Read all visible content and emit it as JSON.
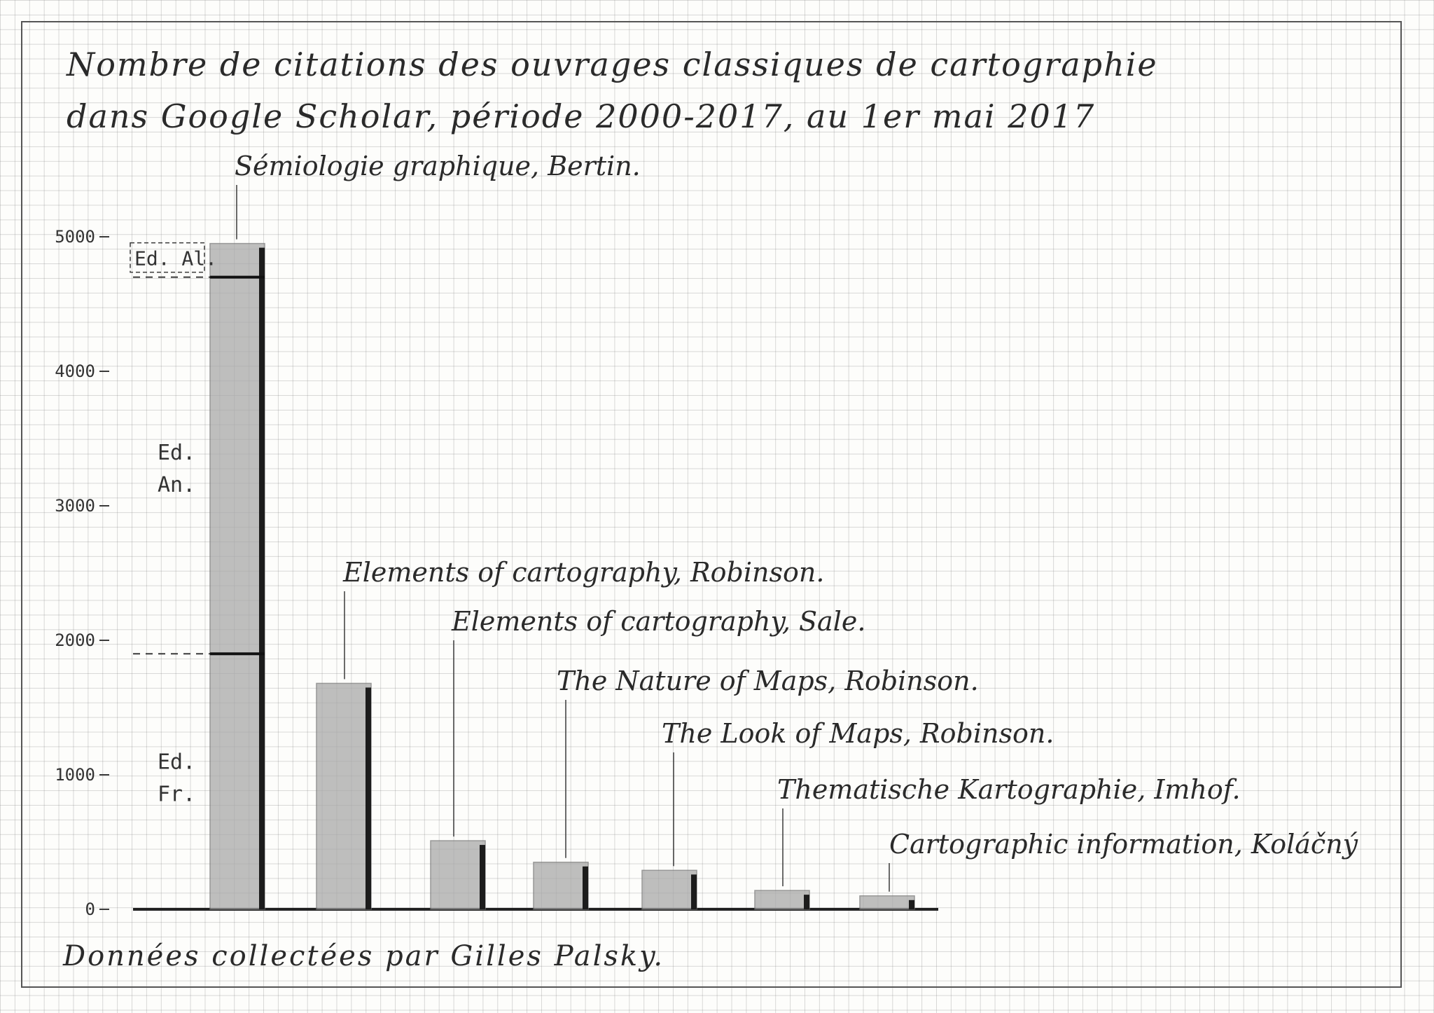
{
  "title_lines": [
    "Nombre de citations des ouvrages classiques de cartographie",
    "dans Google Scholar, période 2000-2017, au 1er mai 2017"
  ],
  "source": "Données collectées par Gilles Palsky.",
  "colors": {
    "pencil": "#3a3a3a",
    "shade": "#a9a9a9",
    "grid": "#b8b8b8"
  },
  "chart_data": {
    "type": "bar",
    "title": "Nombre de citations des ouvrages classiques de cartographie dans Google Scholar, période 2000-2017, au 1er mai 2017",
    "xlabel": "",
    "ylabel": "",
    "ylim": [
      0,
      5000
    ],
    "yticks": [
      0,
      1000,
      2000,
      3000,
      4000,
      5000
    ],
    "ytick_labels": [
      "0",
      "1000",
      "2000",
      "3000",
      "4000",
      "5000"
    ],
    "grid": true,
    "categories": [
      "Sémiologie graphique, Bertin.",
      "Elements of cartography, Robinson.",
      "Elements of cartography, Sale.",
      "The Nature of Maps, Robinson.",
      "The Look of Maps, Robinson.",
      "Thematische Kartographie, Imhof.",
      "Cartographic information, Koláčný"
    ],
    "values": [
      4950,
      1680,
      510,
      350,
      290,
      140,
      100
    ],
    "segments": [
      {
        "bar": 0,
        "label": "Ed. Fr.",
        "from": 0,
        "to": 1900
      },
      {
        "bar": 0,
        "label": "Ed. An.",
        "from": 1900,
        "to": 4700
      },
      {
        "bar": 0,
        "label": "Ed. Al.",
        "from": 4700,
        "to": 4950
      }
    ]
  }
}
